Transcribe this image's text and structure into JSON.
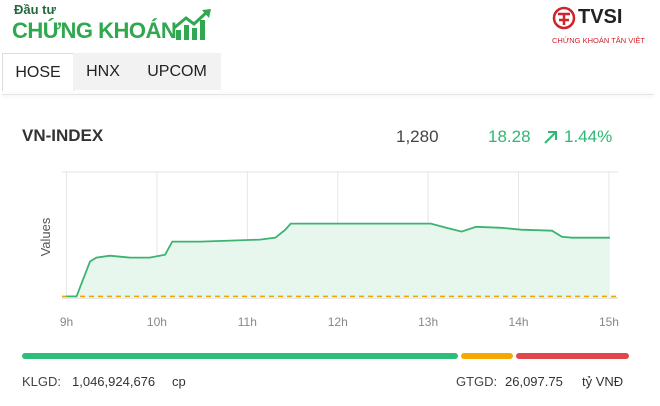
{
  "header": {
    "brand_small": "Đầu tư",
    "brand_large": "CHỨNG KHOÁN",
    "partner": "TVSI",
    "partner_sub": "CHỨNG KHOÁN TÂN VIỆT"
  },
  "tabs": [
    "HOSE",
    "HNX",
    "UPCOM"
  ],
  "index": {
    "name": "VN-INDEX",
    "value": "1,280",
    "change": "18.28",
    "change_pct": "1.44%"
  },
  "chart_data": {
    "type": "line",
    "ylabel": "Values",
    "x": [
      9.0,
      9.11,
      9.26,
      9.33,
      9.48,
      9.7,
      9.92,
      10.09,
      10.17,
      10.48,
      10.81,
      11.14,
      11.31,
      11.42,
      11.48,
      11.92,
      12.48,
      13.03,
      13.2,
      13.37,
      13.53,
      13.81,
      14.03,
      14.37,
      14.48,
      14.59,
      15.01
    ],
    "values": [
      1261.7,
      1261.7,
      1272.6,
      1273.8,
      1274.4,
      1273.8,
      1273.8,
      1274.7,
      1278.8,
      1278.8,
      1279.1,
      1279.4,
      1280.0,
      1282.5,
      1284.4,
      1284.4,
      1284.4,
      1284.4,
      1283.1,
      1281.9,
      1283.4,
      1283.1,
      1282.5,
      1282.2,
      1280.3,
      1280.0,
      1280.0
    ],
    "color": "#3cb371",
    "fill_color": "#e8f7ee",
    "reference_line": 1261.72,
    "reference_color": "#f0a500",
    "xlim": [
      8.95,
      15.1
    ],
    "ylim": [
      1261.2,
      1300.5
    ],
    "xticks": [
      {
        "value": 9,
        "label": "9h"
      },
      {
        "value": 10,
        "label": "10h"
      },
      {
        "value": 11,
        "label": "11h"
      },
      {
        "value": 12,
        "label": "12h"
      },
      {
        "value": 13,
        "label": "13h"
      },
      {
        "value": 14,
        "label": "14h"
      },
      {
        "value": 15,
        "label": "15h"
      }
    ],
    "grid": true
  },
  "breadth": [
    {
      "color": "#2dbe7a",
      "value": 72.5
    },
    {
      "color": "#f5a800",
      "value": 8.7
    },
    {
      "color": "#e0474c",
      "value": 18.8
    }
  ],
  "footer": {
    "volume_label": "KLGD:",
    "volume": "1,046,924,676",
    "volume_unit": "cp",
    "value_label": "GTGD:",
    "value": "26,097.75",
    "value_unit": "tỷ VNĐ"
  }
}
